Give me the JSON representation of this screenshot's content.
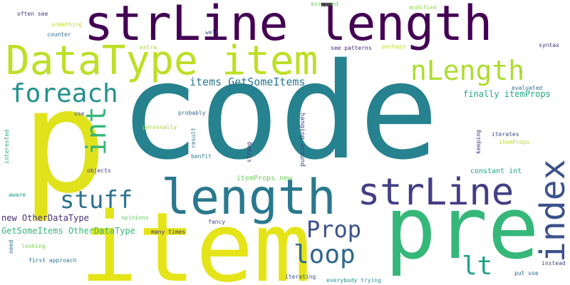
{
  "words": [
    {
      "text": "code",
      "color": "#26828e"
    },
    {
      "text": "p",
      "color": "#e0e31c"
    },
    {
      "text": "item",
      "color": "#e4e419"
    },
    {
      "text": "pre",
      "color": "#35b779"
    },
    {
      "text": "strLine length",
      "color": "#440154"
    },
    {
      "text": "DataType item",
      "color": "#bddf26"
    },
    {
      "text": "length",
      "color": "#2a788e"
    },
    {
      "text": "strLine",
      "color": "#433e85"
    },
    {
      "text": "index",
      "color": "#3b528b"
    },
    {
      "text": "nLength",
      "color": "#addc30"
    },
    {
      "text": "foreach",
      "color": "#21918c"
    },
    {
      "text": "int",
      "color": "#35b779"
    },
    {
      "text": "stuff",
      "color": "#2c728e"
    },
    {
      "text": "loop",
      "color": "#31688e"
    },
    {
      "text": "Prop",
      "color": "#3b528b"
    },
    {
      "text": "lt",
      "color": "#1fa187"
    },
    {
      "text": "items GetSomeItems",
      "color": "#2a788e"
    },
    {
      "text": "finally itemProps",
      "color": "#22a884"
    },
    {
      "text": "new OtherDataType",
      "color": "#472d7b"
    },
    {
      "text": "GetSomeItems OtherDataType",
      "color": "#35b779"
    },
    {
      "text": "itemProps new",
      "color": "#6ece58"
    },
    {
      "text": "constant int",
      "color": "#20a486"
    },
    {
      "text": "hanging around",
      "color": "#3e4989"
    },
    {
      "text": "often see",
      "color": "#46327e"
    },
    {
      "text": "something",
      "color": "#bddf26"
    },
    {
      "text": "counter",
      "color": "#2e6e8e"
    },
    {
      "text": "well",
      "color": "#3b528b"
    },
    {
      "text": "extra",
      "color": "#a2da37"
    },
    {
      "text": "assigned",
      "color": "#6ece58"
    },
    {
      "text": "modified",
      "color": "#90d743"
    },
    {
      "text": "see patterns",
      "color": "#482677"
    },
    {
      "text": "perhaps",
      "color": "#bddf26"
    },
    {
      "text": "syntax",
      "color": "#46327e"
    },
    {
      "text": "evaluated",
      "color": "#2d708e"
    },
    {
      "text": "c",
      "color": "#5ec962"
    },
    {
      "text": "iterates",
      "color": "#3e4989"
    },
    {
      "text": "itemProps",
      "color": "#bddf26"
    },
    {
      "text": "keeping",
      "color": "#46327e"
    },
    {
      "text": "use",
      "color": "#3b528b"
    },
    {
      "text": "probably",
      "color": "#31688e"
    },
    {
      "text": "personally",
      "color": "#a2da37"
    },
    {
      "text": "result",
      "color": "#2c728e"
    },
    {
      "text": "benfit",
      "color": "#27808e"
    },
    {
      "text": "string",
      "color": "#482878"
    },
    {
      "text": "interested",
      "color": "#22a884"
    },
    {
      "text": "objects",
      "color": "#443983"
    },
    {
      "text": "aware",
      "color": "#1f998a"
    },
    {
      "text": "opinions",
      "color": "#5ec962"
    },
    {
      "text": "fancy",
      "color": "#3e4989"
    },
    {
      "text": "many times",
      "color": "#472f7d"
    },
    {
      "text": "need",
      "color": "#2c728e"
    },
    {
      "text": "looking",
      "color": "#7ad151"
    },
    {
      "text": "first approach",
      "color": "#2a788e"
    },
    {
      "text": "iterating",
      "color": "#3b528b"
    },
    {
      "text": "everybody trying",
      "color": "#21918c"
    },
    {
      "text": "put use",
      "color": "#31688e"
    },
    {
      "text": "instead",
      "color": "#3e4989"
    }
  ]
}
